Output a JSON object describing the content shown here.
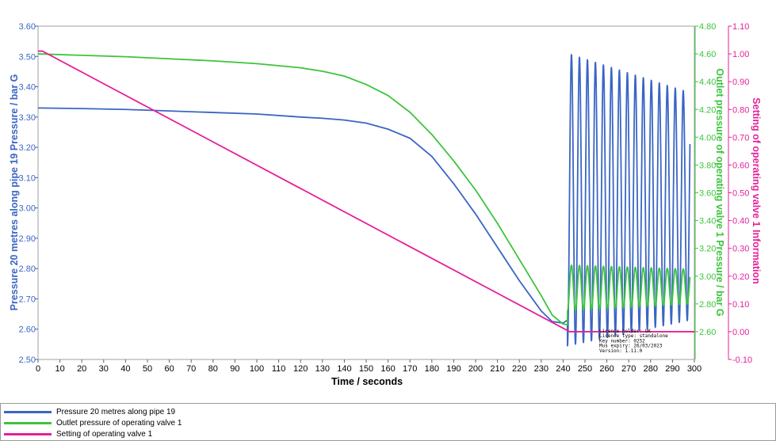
{
  "chart_data": {
    "type": "line",
    "xlabel": "Time / seconds",
    "xlim": [
      0,
      300
    ],
    "x_ticks": [
      "0",
      "10",
      "20",
      "30",
      "40",
      "50",
      "60",
      "70",
      "80",
      "90",
      "100",
      "110",
      "120",
      "130",
      "140",
      "150",
      "160",
      "170",
      "180",
      "190",
      "200",
      "210",
      "220",
      "230",
      "240",
      "250",
      "260",
      "270",
      "280",
      "290",
      "300"
    ],
    "y_axes": [
      {
        "id": "left",
        "label": "Pressure 20 metres along pipe 19 Pressure / bar G",
        "range": [
          2.5,
          3.6
        ],
        "ticks": [
          "2.50",
          "2.60",
          "2.70",
          "2.80",
          "2.90",
          "3.00",
          "3.10",
          "3.20",
          "3.30",
          "3.40",
          "3.50",
          "3.60"
        ],
        "color": "#3a65c4"
      },
      {
        "id": "right1",
        "label": "Outlet pressure of operating valve 1 Pressure / bar G",
        "range": [
          2.4,
          4.8
        ],
        "ticks": [
          "2.60",
          "2.80",
          "3.00",
          "3.20",
          "3.40",
          "3.60",
          "3.80",
          "4.00",
          "4.20",
          "4.40",
          "4.60",
          "4.80"
        ],
        "color": "#3cc43c"
      },
      {
        "id": "right2",
        "label": "Setting of operating valve 1 Information",
        "range": [
          -0.1,
          1.1
        ],
        "ticks": [
          "-0.10",
          "0.00",
          "0.10",
          "0.20",
          "0.30",
          "0.40",
          "0.50",
          "0.60",
          "0.70",
          "0.80",
          "0.90",
          "1.00",
          "1.10"
        ],
        "color": "#e6209a"
      }
    ],
    "series": [
      {
        "name": "Pressure 20 metres along pipe 19",
        "axis": "left",
        "color": "#3a65c4",
        "points": [
          [
            0,
            3.33
          ],
          [
            20,
            3.328
          ],
          [
            40,
            3.325
          ],
          [
            60,
            3.32
          ],
          [
            80,
            3.315
          ],
          [
            100,
            3.31
          ],
          [
            120,
            3.3
          ],
          [
            130,
            3.296
          ],
          [
            140,
            3.29
          ],
          [
            150,
            3.28
          ],
          [
            160,
            3.26
          ],
          [
            170,
            3.23
          ],
          [
            180,
            3.17
          ],
          [
            190,
            3.08
          ],
          [
            200,
            2.98
          ],
          [
            210,
            2.87
          ],
          [
            220,
            2.76
          ],
          [
            230,
            2.66
          ],
          [
            235,
            2.625
          ],
          [
            240,
            2.62
          ],
          [
            242,
            2.63
          ]
        ],
        "oscillation": {
          "start": 242,
          "end": 298,
          "period": 3.65,
          "max_start": 3.51,
          "max_end": 3.38,
          "min_start": 2.545,
          "min_end": 2.63
        }
      },
      {
        "name": "Outlet pressure of operating valve 1",
        "axis": "right1",
        "color": "#3cc43c",
        "points": [
          [
            0,
            4.6
          ],
          [
            20,
            4.59
          ],
          [
            40,
            4.58
          ],
          [
            60,
            4.565
          ],
          [
            80,
            4.55
          ],
          [
            100,
            4.53
          ],
          [
            120,
            4.5
          ],
          [
            130,
            4.475
          ],
          [
            140,
            4.44
          ],
          [
            150,
            4.38
          ],
          [
            160,
            4.3
          ],
          [
            170,
            4.18
          ],
          [
            180,
            4.02
          ],
          [
            190,
            3.83
          ],
          [
            200,
            3.62
          ],
          [
            210,
            3.38
          ],
          [
            220,
            3.12
          ],
          [
            230,
            2.86
          ],
          [
            235,
            2.72
          ],
          [
            240,
            2.655
          ],
          [
            242,
            2.65
          ]
        ],
        "oscillation": {
          "start": 242,
          "end": 298,
          "period": 3.65,
          "max_start": 3.08,
          "max_end": 3.05,
          "min_start": 2.75,
          "min_end": 2.8
        }
      },
      {
        "name": "Setting of operating valve 1",
        "axis": "right2",
        "color": "#e6209a",
        "points": [
          [
            0,
            1.01
          ],
          [
            2,
            1.01
          ],
          [
            243,
            0.0
          ],
          [
            300,
            0.0
          ]
        ]
      }
    ],
    "license_text": [
      "Licence holder: UK",
      "Licence type: standalone",
      "Key number: 0252",
      "Mus expiry: 26/03/2023",
      "Version: 1.11.0"
    ],
    "legend": [
      "Pressure 20 metres along pipe 19",
      "Outlet pressure of operating valve 1",
      "Setting of operating valve 1"
    ]
  }
}
